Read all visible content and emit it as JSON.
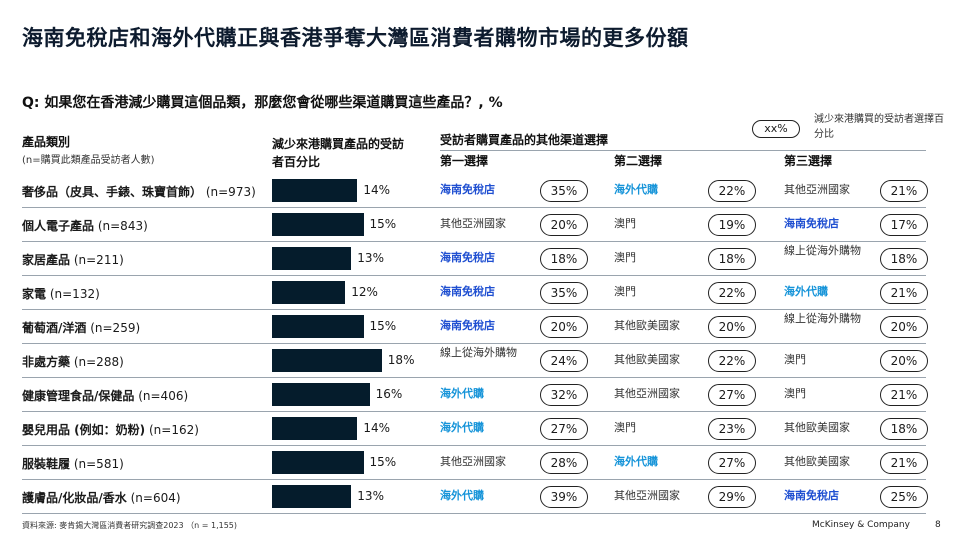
{
  "title": "海南免稅店和海外代購正與香港爭奪大灣區消費者購物市場的更多份額",
  "question": "Q: 如果您在香港減少購買這個品類，那麼您會從哪些渠道購買這些產品？, %",
  "legend": {
    "pill": "xx%",
    "text": "減少來港購買的受訪者選擇百分比"
  },
  "headers": {
    "category": "產品類別",
    "category_sub": "(n=購買此類產品受訪者人數)",
    "bar_col": "減少來港購買產品的受訪者百分比",
    "channels": "受訪者購買產品的其他渠道選擇",
    "choice1": "第一選擇",
    "choice2": "第二選擇",
    "choice3": "第三選擇"
  },
  "colors": {
    "bar": "#051c2c",
    "hainan": "#1f4fd1",
    "overseas": "#1694d9"
  },
  "chart_data": {
    "type": "bar",
    "categories": [
      "奢侈品（皮具、手錶、珠寶首飾）(n=973)",
      "個人電子產品 (n=843)",
      "家居產品 (n=211)",
      "家電 (n=132)",
      "葡萄酒/洋酒 (n=259)",
      "非處方藥 (n=288)",
      "健康管理食品/保健品 (n=406)",
      "嬰兒用品 (例如：奶粉) (n=162)",
      "服裝鞋履 (n=581)",
      "護膚品/化妝品/香水 (n=604)"
    ],
    "values": [
      14,
      15,
      13,
      12,
      15,
      18,
      16,
      14,
      15,
      13
    ],
    "rows": [
      {
        "name": "奢侈品（皮具、手錶、珠寶首飾）",
        "n": "(n=973)",
        "pct": "14%",
        "value": 14,
        "c1": "海南免稅店",
        "c1s": "hl",
        "p1": "35%",
        "c2": "海外代購",
        "c2s": "hl2",
        "p2": "22%",
        "c3": "其他亞洲國家",
        "c3s": "",
        "p3": "21%"
      },
      {
        "name": "個人電子產品",
        "n": "(n=843)",
        "pct": "15%",
        "value": 15,
        "c1": "其他亞洲國家",
        "c1s": "",
        "p1": "20%",
        "c2": "澳門",
        "c2s": "",
        "p2": "19%",
        "c3": "海南免稅店",
        "c3s": "hl",
        "p3": "17%"
      },
      {
        "name": "家居產品",
        "n": "(n=211)",
        "pct": "13%",
        "value": 13,
        "c1": "海南免稅店",
        "c1s": "hl",
        "p1": "18%",
        "c2": "澳門",
        "c2s": "",
        "p2": "18%",
        "c3": "線上從海外購物",
        "c3s": "two",
        "p3": "18%"
      },
      {
        "name": "家電",
        "n": "(n=132)",
        "pct": "12%",
        "value": 12,
        "c1": "海南免稅店",
        "c1s": "hl",
        "p1": "35%",
        "c2": "澳門",
        "c2s": "",
        "p2": "22%",
        "c3": "海外代購",
        "c3s": "hl2",
        "p3": "21%"
      },
      {
        "name": "葡萄酒/洋酒",
        "n": "(n=259)",
        "pct": "15%",
        "value": 15,
        "c1": "海南免稅店",
        "c1s": "hl",
        "p1": "20%",
        "c2": "其他歐美國家",
        "c2s": "",
        "p2": "20%",
        "c3": "線上從海外購物",
        "c3s": "two",
        "p3": "20%"
      },
      {
        "name": "非處方藥",
        "n": "(n=288)",
        "pct": "18%",
        "value": 18,
        "c1": "線上從海外購物",
        "c1s": "two",
        "p1": "24%",
        "c2": "其他歐美國家",
        "c2s": "",
        "p2": "22%",
        "c3": "澳門",
        "c3s": "",
        "p3": "20%"
      },
      {
        "name": "健康管理食品/保健品",
        "n": "(n=406)",
        "pct": "16%",
        "value": 16,
        "c1": "海外代購",
        "c1s": "hl2",
        "p1": "32%",
        "c2": "其他亞洲國家",
        "c2s": "",
        "p2": "27%",
        "c3": "澳門",
        "c3s": "",
        "p3": "21%"
      },
      {
        "name": "嬰兒用品 (例如：奶粉)",
        "n": "(n=162)",
        "pct": "14%",
        "value": 14,
        "c1": "海外代購",
        "c1s": "hl2",
        "p1": "27%",
        "c2": "澳門",
        "c2s": "",
        "p2": "23%",
        "c3": "其他歐美國家",
        "c3s": "",
        "p3": "18%"
      },
      {
        "name": "服裝鞋履",
        "n": "(n=581)",
        "pct": "15%",
        "value": 15,
        "c1": "其他亞洲國家",
        "c1s": "",
        "p1": "28%",
        "c2": "海外代購",
        "c2s": "hl2",
        "p2": "27%",
        "c3": "其他歐美國家",
        "c3s": "",
        "p3": "21%"
      },
      {
        "name": "護膚品/化妝品/香水",
        "n": "(n=604)",
        "pct": "13%",
        "value": 13,
        "c1": "海外代購",
        "c1s": "hl2",
        "p1": "39%",
        "c2": "其他亞洲國家",
        "c2s": "",
        "p2": "29%",
        "c3": "海南免稅店",
        "c3s": "hl",
        "p3": "25%"
      }
    ]
  },
  "footer": {
    "source": "資料來源: 麥肯錫大灣區消費者研究調查2023 （n = 1,155)",
    "brand": "McKinsey & Company",
    "page": "8"
  }
}
